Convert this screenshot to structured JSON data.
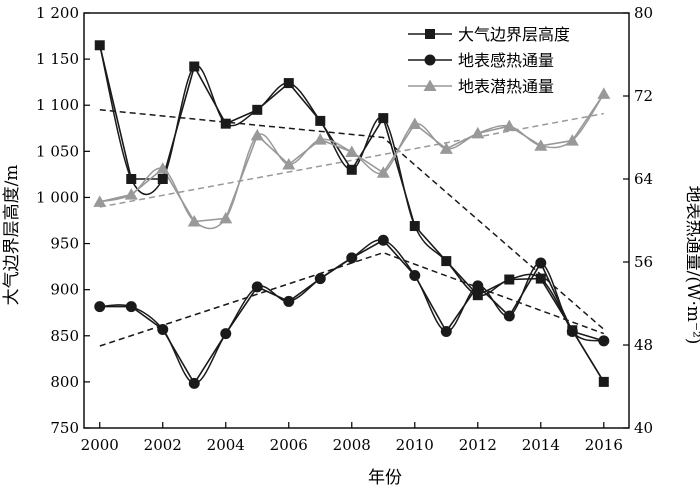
{
  "chart_data": {
    "type": "line",
    "x": [
      2000,
      2001,
      2002,
      2003,
      2004,
      2005,
      2006,
      2007,
      2008,
      2009,
      2010,
      2011,
      2012,
      2013,
      2014,
      2015,
      2016
    ],
    "x_ticks": [
      2000,
      2002,
      2004,
      2006,
      2008,
      2010,
      2012,
      2014,
      2016
    ],
    "xlim": [
      1999.5,
      2016.8
    ],
    "xlabel": "年份",
    "ylabel_left": "大气边界层高度/m",
    "ylabel_right": "地表热通量/(W·m⁻²)",
    "ylim_left": [
      750,
      1200
    ],
    "ylim_right": [
      40,
      80
    ],
    "y_ticks_left": [
      "750",
      "800",
      "850",
      "900",
      "950",
      "1 000",
      "1 050",
      "1 100",
      "1 150",
      "1 200"
    ],
    "y_ticks_right": [
      "40",
      "48",
      "56",
      "64",
      "72",
      "80"
    ],
    "legend_position": "top-right",
    "colors": {
      "dark": "#1a1a1a",
      "gray": "#999999"
    },
    "series": [
      {
        "name": "大气边界层高度",
        "axis": "left",
        "marker": "square",
        "color": "#1a1a1a",
        "values": [
          1165,
          1020,
          1020,
          1142,
          1080,
          1095,
          1124,
          1083,
          1030,
          1086,
          969,
          931,
          894,
          911,
          912,
          856,
          800
        ],
        "trend": [
          [
            2000,
            1095
          ],
          [
            2009,
            1065
          ],
          [
            2016,
            857
          ]
        ]
      },
      {
        "name": "地表感热通量",
        "axis": "right",
        "marker": "circle",
        "color": "#1a1a1a",
        "values": [
          51.7,
          51.7,
          49.5,
          44.3,
          49.1,
          53.6,
          52.2,
          54.4,
          56.4,
          58.1,
          54.7,
          49.3,
          53.7,
          50.8,
          55.9,
          49.3,
          48.4
        ],
        "trend": [
          [
            2000,
            47.9
          ],
          [
            2009,
            56.9
          ],
          [
            2016,
            49.1
          ]
        ]
      },
      {
        "name": "地表潜热通量",
        "axis": "right",
        "marker": "triangle",
        "color": "#999999",
        "values": [
          61.8,
          62.5,
          65,
          59.9,
          60.2,
          68.2,
          65.4,
          67.8,
          66.6,
          64.6,
          69.3,
          66.9,
          68.4,
          69.1,
          67.2,
          67.7,
          72.2
        ],
        "trend": [
          [
            2000,
            61.3
          ],
          [
            2016,
            70.3
          ]
        ]
      }
    ]
  }
}
